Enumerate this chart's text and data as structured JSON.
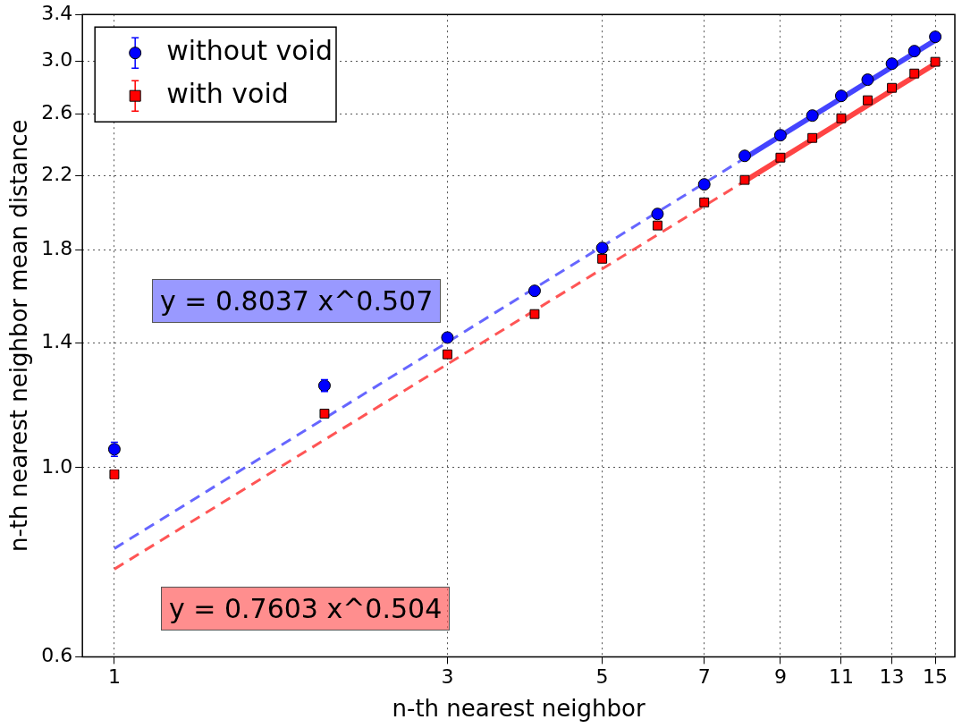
{
  "chart_data": {
    "type": "scatter",
    "xlabel": "n-th nearest neighbor",
    "ylabel": "n-th nearest neighbor mean distance",
    "log": "xy",
    "grid": true,
    "legend": "top left",
    "xlim": [
      0.9,
      16
    ],
    "xticks": [
      1,
      3,
      5,
      7,
      9,
      11,
      13,
      15
    ],
    "ylim": [
      0.6,
      3.4
    ],
    "yticks": [
      0.6,
      {
        "value": 1,
        "label": "1.0"
      },
      1.4,
      1.8,
      2.2,
      2.6,
      {
        "value": 3,
        "label": "3.0"
      },
      3.4
    ],
    "x": [
      1,
      2,
      3,
      4,
      5,
      6,
      7,
      8,
      9,
      10,
      11,
      12,
      13,
      14,
      15
    ],
    "series": [
      {
        "name": "without void",
        "color": "#0000ff",
        "marker": "circle",
        "values": [
          1.051,
          1.248,
          1.421,
          1.612,
          1.81,
          1.984,
          2.149,
          2.321,
          2.454,
          2.588,
          2.729,
          2.851,
          2.977,
          3.08,
          3.201
        ],
        "errors": [
          0.02,
          0.02,
          0.015,
          0.015,
          0.01,
          0.01,
          0.01,
          0.01,
          0.01,
          0.01,
          0.01,
          0.01,
          0.01,
          0.01,
          0.01
        ]
      },
      {
        "name": "with void",
        "color": "#ff0000",
        "marker": "square",
        "values": [
          0.982,
          1.157,
          1.358,
          1.514,
          1.758,
          1.923,
          2.047,
          2.175,
          2.31,
          2.436,
          2.569,
          2.697,
          2.789,
          2.899,
          2.992
        ],
        "errors": [
          0.01,
          0.01,
          0.01,
          0.01,
          0.01,
          0.01,
          0.01,
          0.01,
          0.01,
          0.01,
          0.01,
          0.01,
          0.01,
          0.01,
          0.01
        ]
      },
      {
        "type": "line",
        "color": "#6666ff",
        "line_style": "dashed",
        "x": [
          1,
          8
        ],
        "values": [
          0.8037,
          2.307
        ]
      },
      {
        "type": "line",
        "color": "#4444ff",
        "line_style": "solid",
        "x": [
          8,
          15
        ],
        "values": [
          2.307,
          3.172
        ]
      },
      {
        "type": "line",
        "color": "#ff5555",
        "line_style": "dashed",
        "x": [
          1,
          8
        ],
        "values": [
          0.7603,
          2.168
        ]
      },
      {
        "type": "line",
        "color": "#ff4444",
        "line_style": "solid",
        "x": [
          8,
          15
        ],
        "values": [
          2.168,
          2.977
        ]
      }
    ],
    "annotations": [
      "y = 0.8037 x^0.507",
      "y = 0.7603 x^0.504"
    ]
  }
}
